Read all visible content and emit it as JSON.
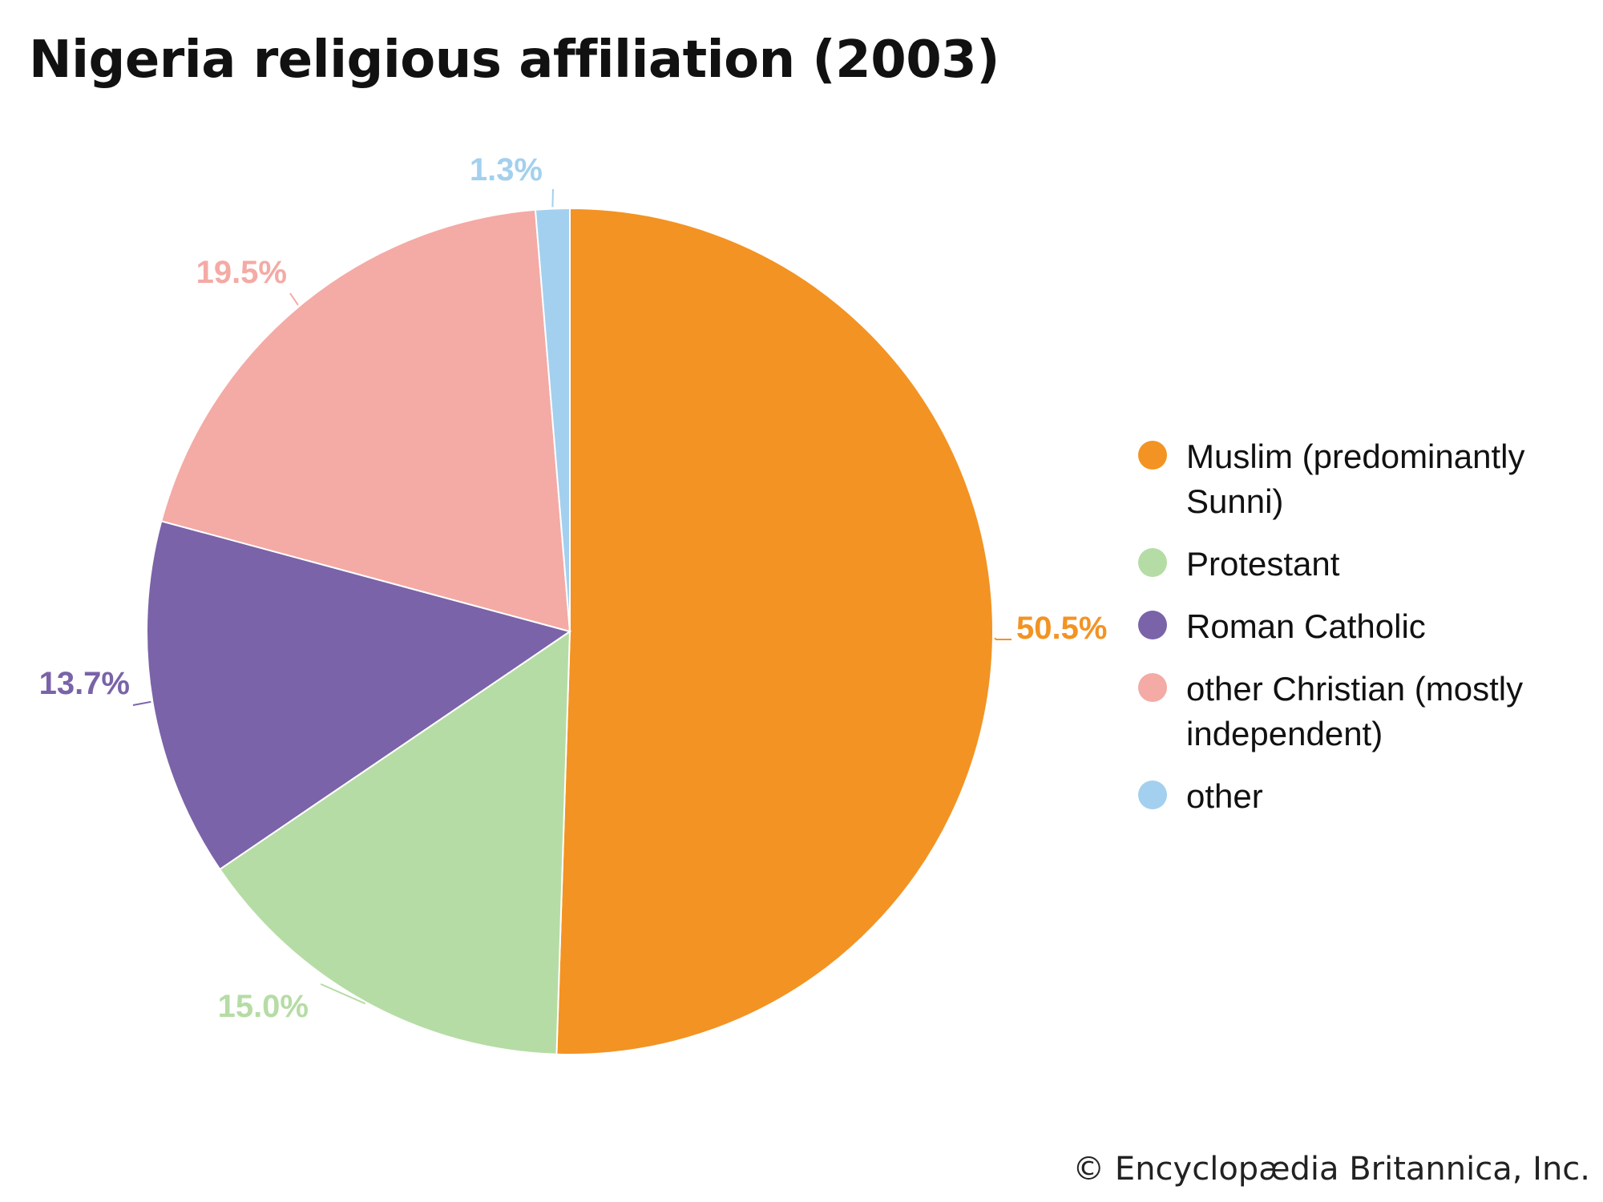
{
  "chart_data": {
    "type": "pie",
    "title": "Nigeria religious affiliation (2003)",
    "slices": [
      {
        "name": "Muslim (predominantly Sunni)",
        "value": 50.5,
        "label": "50.5%",
        "color": "#F39323"
      },
      {
        "name": "Protestant",
        "value": 15.0,
        "label": "15.0%",
        "color": "#B5DCA5"
      },
      {
        "name": "Roman Catholic",
        "value": 13.7,
        "label": "13.7%",
        "color": "#7A63A8"
      },
      {
        "name": "other Christian (mostly independent)",
        "value": 19.5,
        "label": "19.5%",
        "color": "#F4AAA5"
      },
      {
        "name": "other",
        "value": 1.3,
        "label": "1.3%",
        "color": "#A3D0EE"
      }
    ],
    "start_angle_deg": 0,
    "direction": "clockwise",
    "legend_position": "right"
  },
  "footer": {
    "copyright": "© Encyclopædia Britannica, Inc."
  }
}
